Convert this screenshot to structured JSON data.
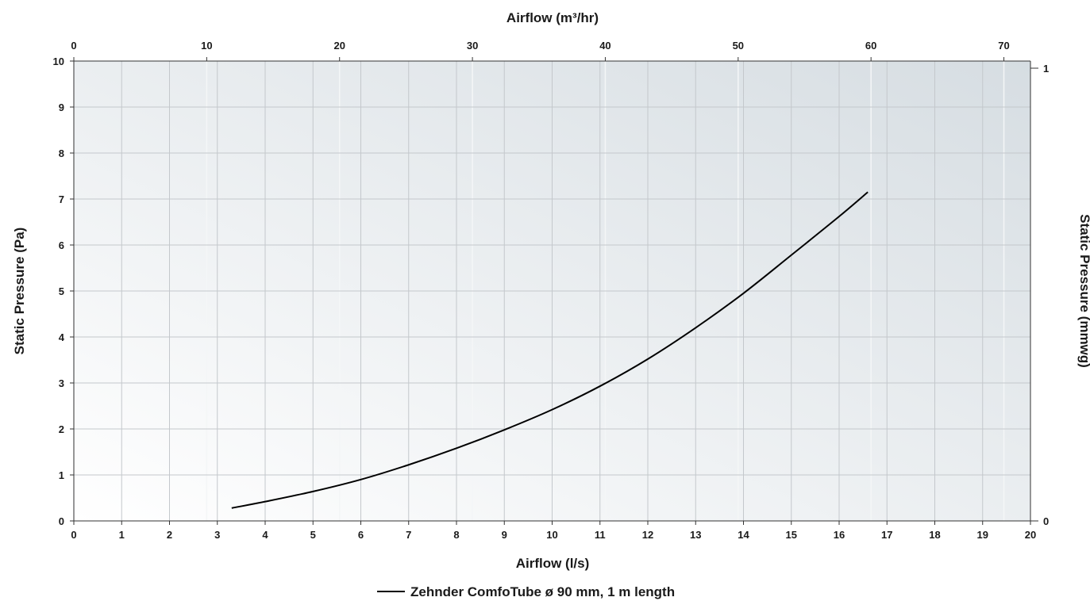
{
  "chart_data": {
    "type": "line",
    "title": "",
    "xlabel": "Airflow (l/s)",
    "ylabel": "Static Pressure (Pa)",
    "x2label": "Airflow (m³/hr)",
    "y2label": "Static Pressure (mmwg)",
    "xlim": [
      0,
      20
    ],
    "ylim": [
      0,
      10
    ],
    "x2lim": [
      0,
      72
    ],
    "y2lim": [
      0,
      1
    ],
    "x_ticks": [
      "0",
      "1",
      "2",
      "3",
      "4",
      "5",
      "6",
      "7",
      "8",
      "9",
      "10",
      "11",
      "12",
      "13",
      "14",
      "15",
      "16",
      "17",
      "18",
      "19",
      "20"
    ],
    "y_ticks": [
      "0",
      "1",
      "2",
      "3",
      "4",
      "5",
      "6",
      "7",
      "8",
      "9",
      "10"
    ],
    "x2_ticks": [
      "0",
      "10",
      "20",
      "30",
      "40",
      "50",
      "60",
      "70"
    ],
    "y2_ticks": [
      "0",
      "1"
    ],
    "grid": true,
    "legend_position": "bottom-center",
    "series": [
      {
        "name": "Zehnder ComfoTube ø 90 mm, 1 m length",
        "color": "#000000",
        "x": [
          3.3,
          4,
          5,
          6,
          7,
          8,
          9,
          10,
          11,
          12,
          13,
          14,
          15,
          16,
          16.6
        ],
        "y": [
          0.28,
          0.42,
          0.64,
          0.9,
          1.22,
          1.58,
          1.98,
          2.42,
          2.93,
          3.52,
          4.2,
          4.95,
          5.78,
          6.62,
          7.15
        ]
      }
    ]
  }
}
